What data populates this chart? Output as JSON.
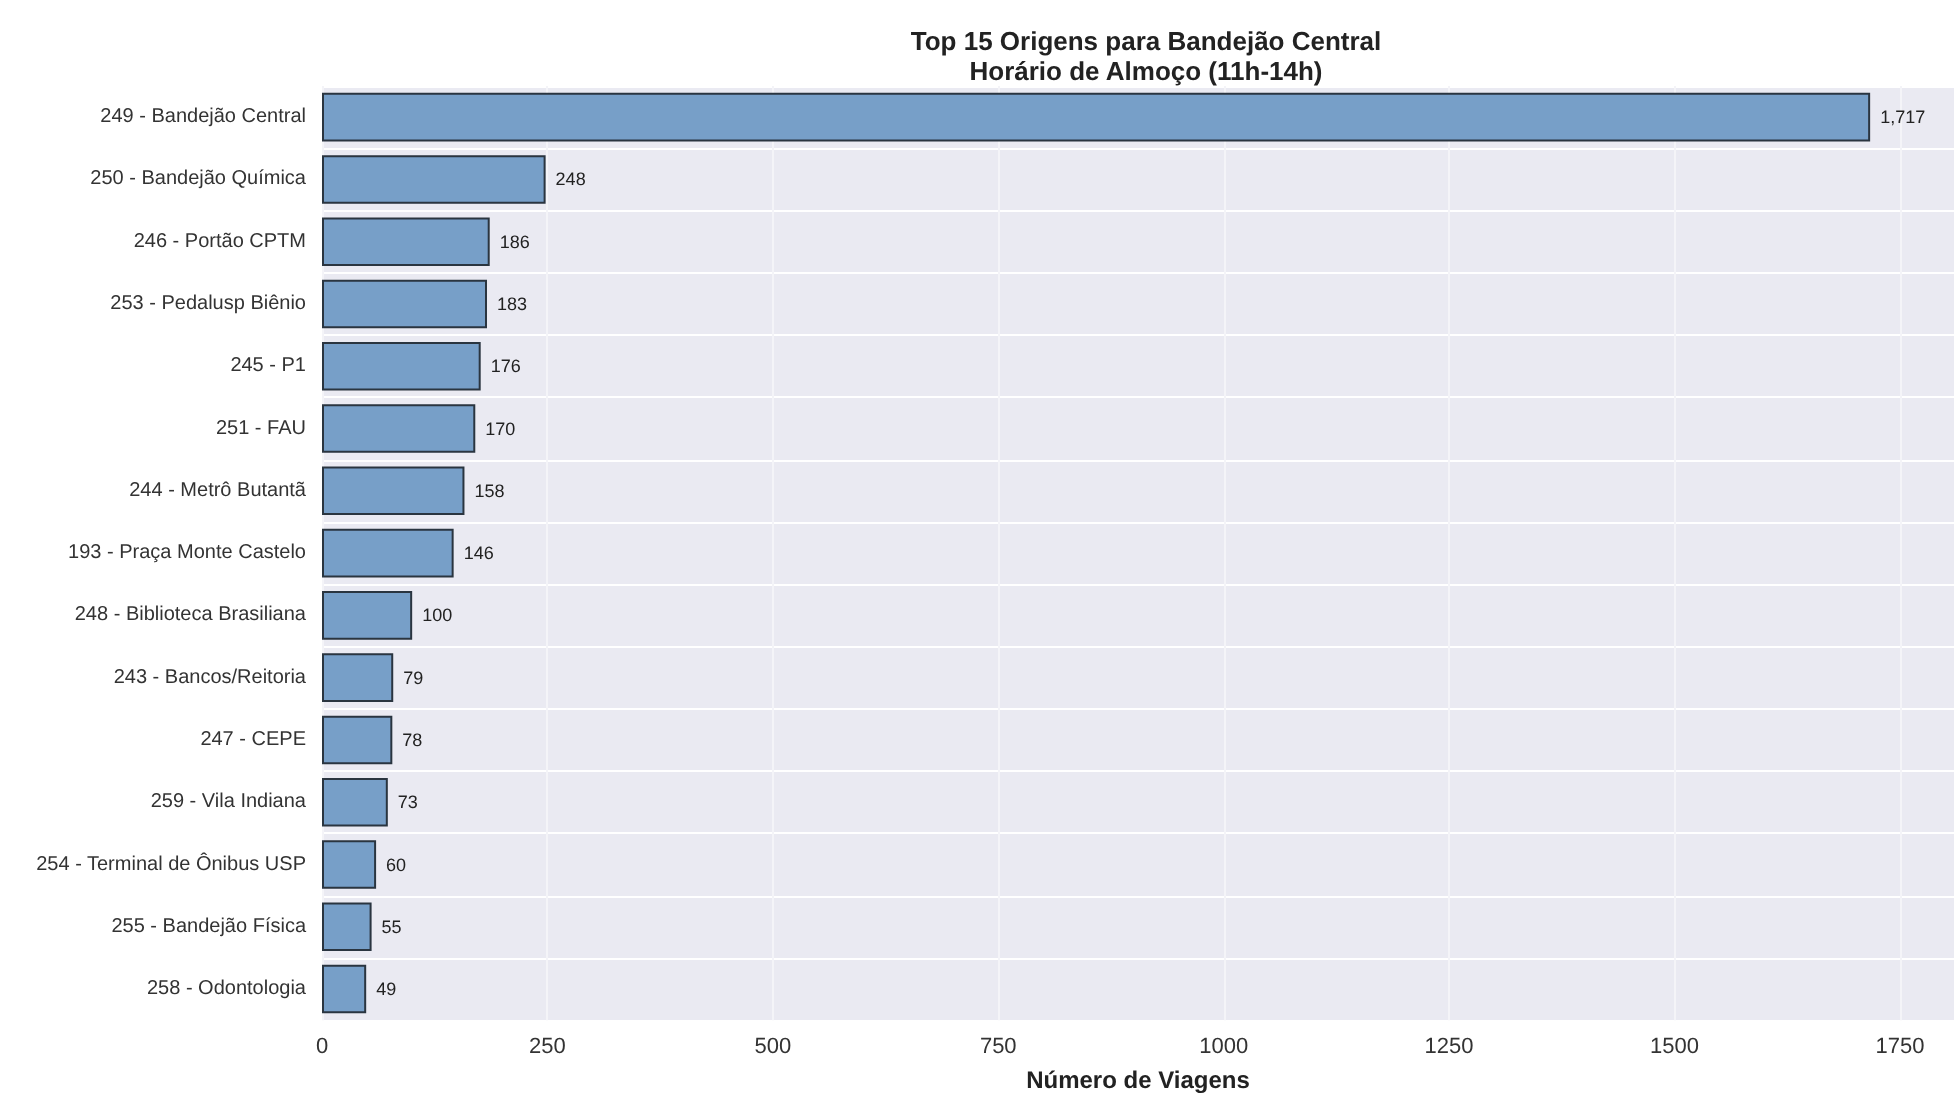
{
  "chart_data": {
    "type": "bar",
    "orientation": "horizontal",
    "title": "Top 15 Origens para Bandejão Central\nHorário de Almoço (11h-14h)",
    "xlabel": "Número de Viagens",
    "categories": [
      "249 - Bandejão Central",
      "250 - Bandejão Química",
      "246 - Portão CPTM",
      "253 - Pedalusp Biênio",
      "245 - P1",
      "251 - FAU",
      "244 - Metrô Butantã",
      "193 - Praça Monte Castelo",
      "248 - Biblioteca Brasiliana",
      "243 - Bancos/Reitoria",
      "247 - CEPE",
      "259 - Vila Indiana",
      "254 - Terminal de Ônibus USP",
      "255 - Bandejão Física",
      "258 - Odontologia"
    ],
    "values": [
      1717,
      248,
      186,
      183,
      176,
      170,
      158,
      146,
      100,
      79,
      78,
      73,
      60,
      55,
      49
    ],
    "value_labels": [
      "1,717",
      "248",
      "186",
      "183",
      "176",
      "170",
      "158",
      "146",
      "100",
      "79",
      "78",
      "73",
      "60",
      "55",
      "49"
    ],
    "color": "#779fc8",
    "xlim": [
      0,
      1810
    ],
    "xticks": [
      0,
      250,
      500,
      750,
      1000,
      1250,
      1500,
      1750
    ],
    "grid": true
  }
}
